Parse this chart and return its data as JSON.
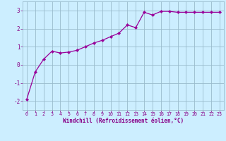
{
  "x": [
    0,
    1,
    2,
    3,
    4,
    5,
    6,
    7,
    8,
    9,
    10,
    11,
    12,
    13,
    14,
    15,
    16,
    17,
    18,
    19,
    20,
    21,
    22,
    23
  ],
  "y": [
    -1.9,
    -0.4,
    0.3,
    0.75,
    0.65,
    0.7,
    0.8,
    1.0,
    1.2,
    1.35,
    1.55,
    1.75,
    2.2,
    2.05,
    2.9,
    2.75,
    2.95,
    2.95,
    2.9,
    2.9,
    2.9,
    2.9,
    2.9,
    2.9
  ],
  "line_color": "#990099",
  "marker": "D",
  "marker_size": 2.2,
  "bg_color": "#cceeff",
  "grid_color": "#99bbcc",
  "xlabel": "Windchill (Refroidissement éolien,°C)",
  "xlabel_color": "#880088",
  "tick_color": "#880088",
  "ylim": [
    -2.5,
    3.5
  ],
  "xlim": [
    -0.5,
    23.5
  ],
  "yticks": [
    -2,
    -1,
    0,
    1,
    2,
    3
  ],
  "xticks": [
    0,
    1,
    2,
    3,
    4,
    5,
    6,
    7,
    8,
    9,
    10,
    11,
    12,
    13,
    14,
    15,
    16,
    17,
    18,
    19,
    20,
    21,
    22,
    23
  ]
}
